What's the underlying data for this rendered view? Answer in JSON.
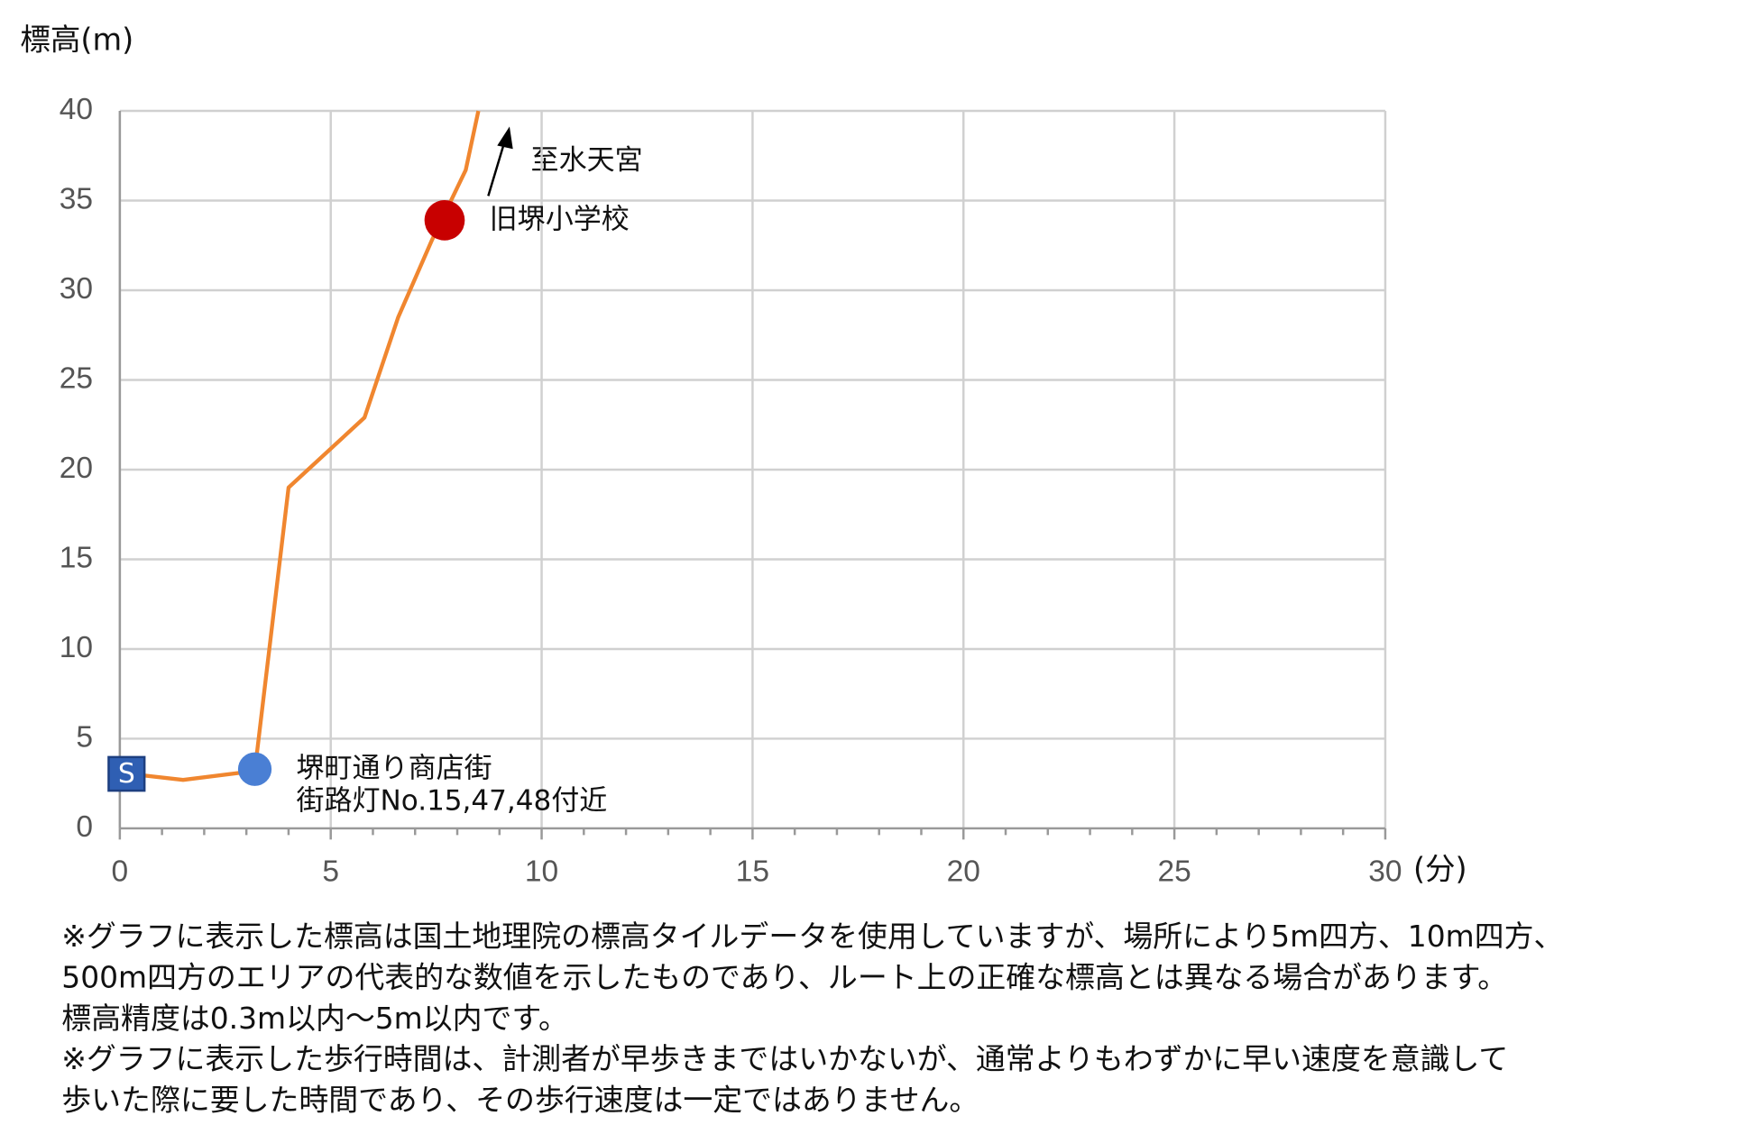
{
  "chart_data": {
    "type": "line",
    "y_label": "標高(m)",
    "x_unit": "(分)",
    "x": [
      0,
      1.5,
      3.2,
      4.0,
      5.8,
      6.6,
      7.4,
      8.2,
      8.5
    ],
    "series": [
      {
        "color": "#f0862f",
        "values": [
          3.1,
          2.7,
          3.2,
          19.0,
          22.9,
          28.5,
          32.8,
          36.7,
          40
        ]
      }
    ],
    "xlim": [
      0,
      30
    ],
    "ylim": [
      0,
      40
    ],
    "xticks": [
      0,
      5,
      10,
      15,
      20,
      25,
      30
    ],
    "yticks": [
      0,
      5,
      10,
      15,
      20,
      25,
      30,
      35,
      40
    ],
    "grid": true,
    "markers": [
      {
        "label": "S",
        "x": 0,
        "y": 3.1,
        "color": "#2f5fb3",
        "shape": "square"
      },
      {
        "x": 3.2,
        "y": 3.3,
        "color": "#4a7fd4",
        "shape": "circle",
        "text": [
          "堺町通り商店街",
          "街路灯No.15,47,48付近"
        ]
      },
      {
        "x": 7.7,
        "y": 33.9,
        "color": "#c80000",
        "shape": "circle",
        "text": [
          "旧堺小学校"
        ]
      }
    ],
    "direction_label": "至水天宮",
    "notes": [
      "※グラフに表示した標高は国土地理院の標高タイルデータを使用していますが、場所により5m四方、10m四方、",
      "500m四方のエリアの代表的な数値を示したものであり、ルート上の正確な標高とは異なる場合があります。",
      "標高精度は0.3m以内～5m以内です。",
      "※グラフに表示した歩行時間は、計測者が早歩きまではいかないが、通常よりもわずかに早い速度を意識して",
      "歩いた際に要した時間であり、その歩行速度は一定ではありません。"
    ]
  }
}
